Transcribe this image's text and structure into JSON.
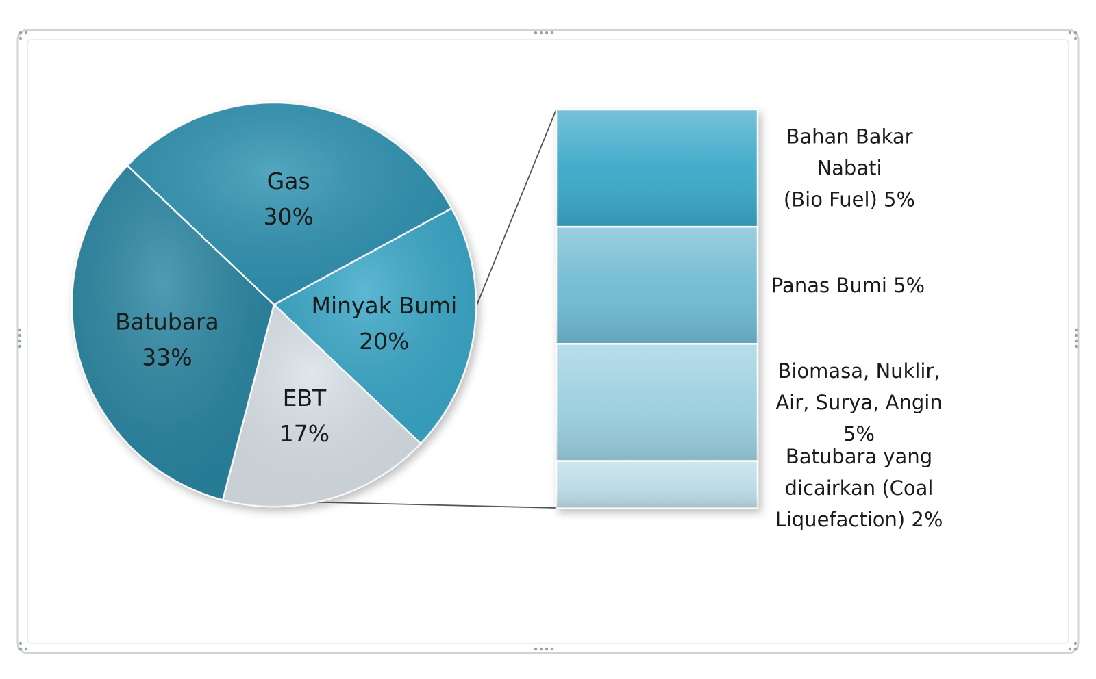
{
  "chart_data": {
    "type": "pie",
    "subtype": "bar-of-pie",
    "slices": [
      {
        "label": "Minyak Bumi",
        "value": 20,
        "value_label": "20%",
        "color": "#3aa8c8"
      },
      {
        "label": "EBT",
        "value": 17,
        "value_label": "17%",
        "color": "#d9e2e8",
        "exploded_into_bar": true
      },
      {
        "label": "Batubara",
        "value": 33,
        "value_label": "33%",
        "color": "#2a86a2"
      },
      {
        "label": "Gas",
        "value": 30,
        "value_label": "30%",
        "color": "#2f93b2"
      }
    ],
    "breakdown_of": "EBT",
    "breakdown": [
      {
        "label_lines": [
          "Bahan Bakar",
          "Nabati",
          "(Bio Fuel) 5%"
        ],
        "value": 5,
        "color": "#3aa8c8"
      },
      {
        "label_lines": [
          "Panas Bumi  5%"
        ],
        "value": 5,
        "color": "#6fbad2"
      },
      {
        "label_lines": [
          "Biomasa, Nuklir,",
          "Air, Surya,  Angin",
          "5%"
        ],
        "value": 5,
        "color": "#9acfe0"
      },
      {
        "label_lines": [
          "Batubara yang",
          "dicairkan (Coal",
          "Liquefaction) 2%"
        ],
        "value": 2,
        "color": "#bcdbe6"
      }
    ]
  }
}
